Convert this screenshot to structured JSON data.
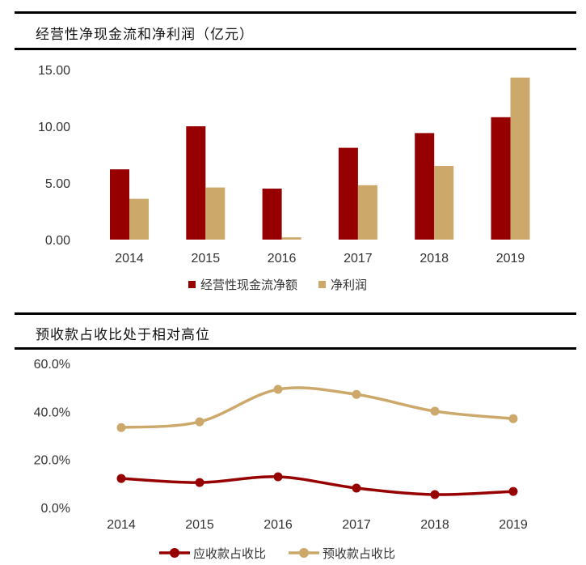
{
  "colors": {
    "red": "#960000",
    "tan": "#CCA86A"
  },
  "chart_data": [
    {
      "type": "bar",
      "title": "经营性净现金流和净利润（亿元）",
      "categories": [
        "2014",
        "2015",
        "2016",
        "2017",
        "2018",
        "2019"
      ],
      "series": [
        {
          "name": "经营性现金流净额",
          "values": [
            6.2,
            10.0,
            4.5,
            8.1,
            9.4,
            10.8
          ]
        },
        {
          "name": "净利润",
          "values": [
            3.6,
            4.6,
            0.2,
            4.8,
            6.5,
            14.3
          ]
        }
      ],
      "ylim": [
        0,
        15
      ],
      "yticks": [
        "0.00",
        "5.00",
        "10.00",
        "15.00"
      ],
      "grid": false,
      "legend": "bottom"
    },
    {
      "type": "line",
      "title": "预收款占收比处于相对高位",
      "categories": [
        "2014",
        "2015",
        "2016",
        "2017",
        "2018",
        "2019"
      ],
      "series": [
        {
          "name": "应收款占收比",
          "values": [
            12.1,
            10.4,
            12.8,
            8.1,
            5.4,
            6.7
          ]
        },
        {
          "name": "预收款占收比",
          "values": [
            33.3,
            35.7,
            49.2,
            47.1,
            40.1,
            37.0
          ]
        }
      ],
      "ylim": [
        0,
        60
      ],
      "yticks": [
        "0.0%",
        "20.0%",
        "40.0%",
        "60.0%"
      ],
      "grid": false,
      "legend": "bottom"
    }
  ]
}
